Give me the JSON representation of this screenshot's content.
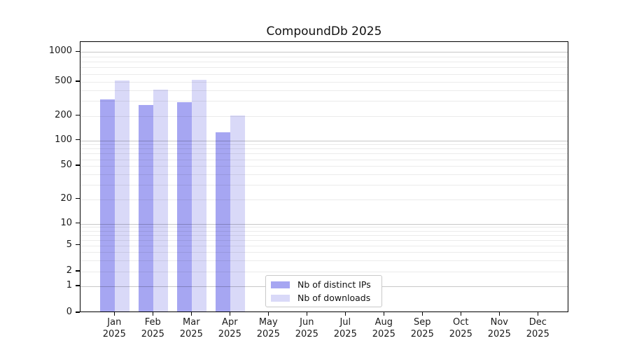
{
  "title": "CompoundDb 2025",
  "chart_data": {
    "type": "bar",
    "title": "CompoundDb 2025",
    "categories": [
      "Jan",
      "Feb",
      "Mar",
      "Apr",
      "May",
      "Jun",
      "Jul",
      "Aug",
      "Sep",
      "Oct",
      "Nov",
      "Dec"
    ],
    "x_year_label": "2025",
    "series": [
      {
        "name": "Nb of distinct IPs",
        "color": "#a6a6f2",
        "values": [
          300,
          260,
          280,
          122,
          null,
          null,
          null,
          null,
          null,
          null,
          null,
          null
        ]
      },
      {
        "name": "Nb of downloads",
        "color": "#d9d9f8",
        "values": [
          500,
          390,
          505,
          195,
          null,
          null,
          null,
          null,
          null,
          null,
          null,
          null
        ]
      }
    ],
    "yticks": [
      0,
      1,
      2,
      5,
      10,
      20,
      50,
      100,
      200,
      500,
      1000
    ],
    "ylim": [
      0,
      1300
    ],
    "yscale": "pseudo-log (0,1,2,5,10,...,1000)",
    "xlabel": "",
    "ylabel": "",
    "grid": "horizontal",
    "legend_position": "inside-bottom-center"
  }
}
